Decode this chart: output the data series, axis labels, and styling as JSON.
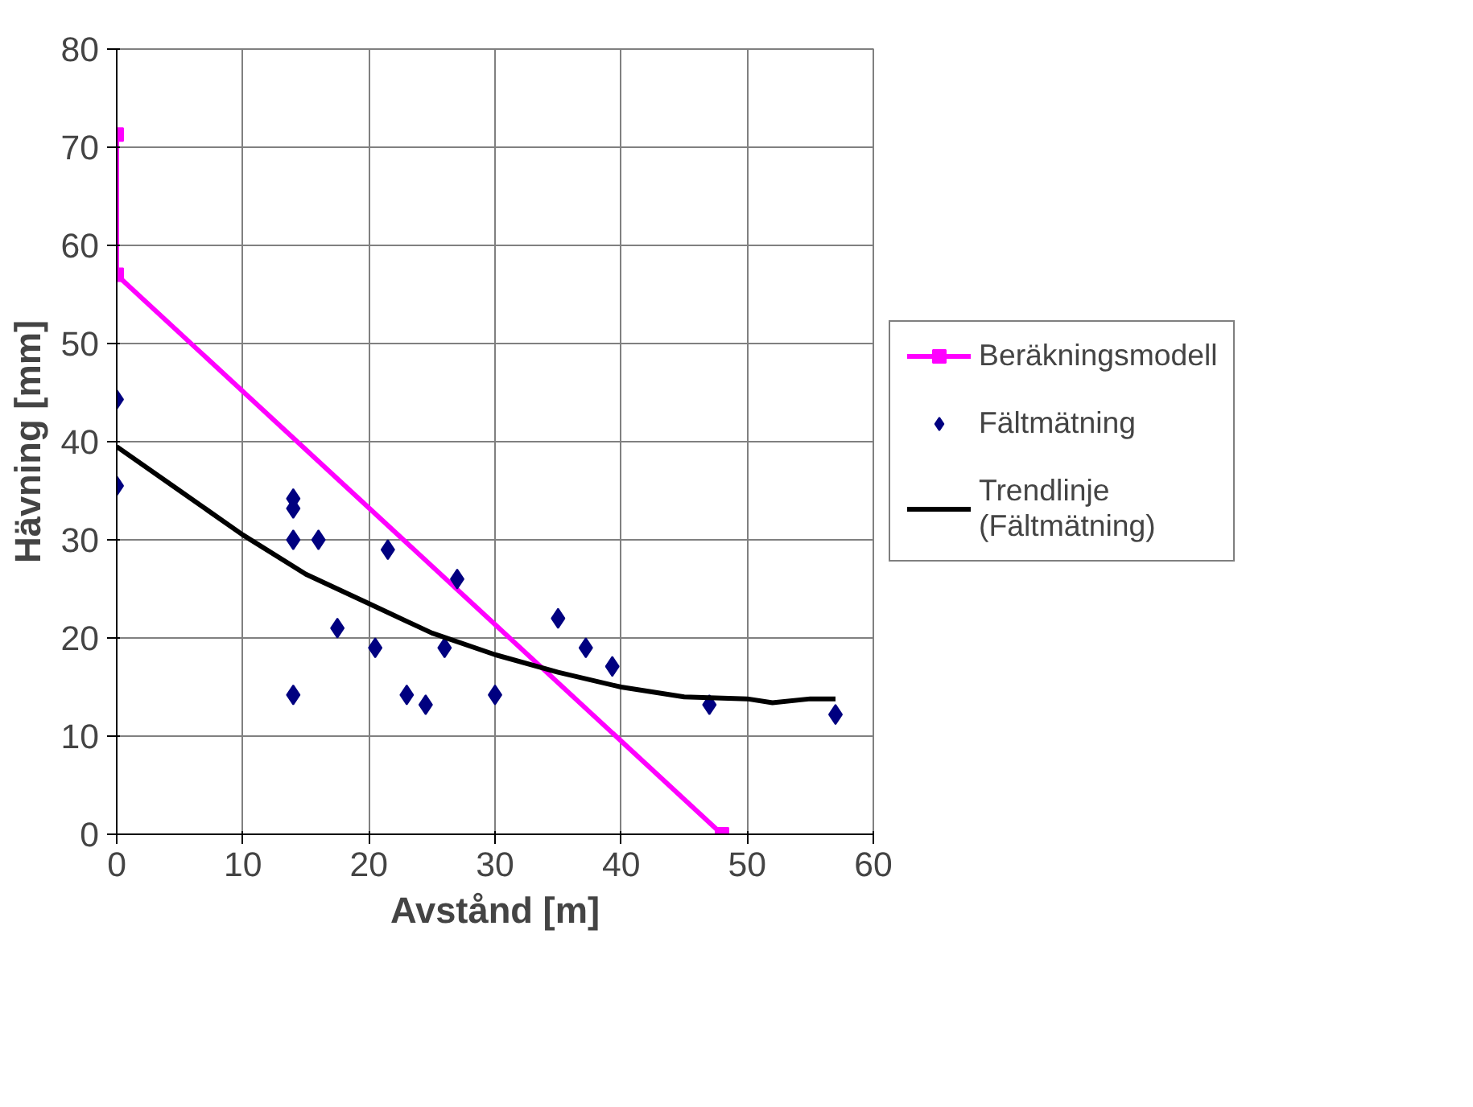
{
  "chart_data": {
    "type": "scatter",
    "xlabel": "Avstånd [m]",
    "ylabel": "Hävning [mm]",
    "xlim": [
      0,
      60
    ],
    "ylim": [
      0,
      80
    ],
    "xticks": [
      0,
      10,
      20,
      30,
      40,
      50,
      60
    ],
    "yticks": [
      0,
      10,
      20,
      30,
      40,
      50,
      60,
      70,
      80
    ],
    "grid": true,
    "legend": "right",
    "series": [
      {
        "name": "Beräkningsmodell",
        "type": "line",
        "color": "#ff00ff",
        "marker": "square",
        "x": [
          0,
          0,
          48
        ],
        "values": [
          71.3,
          57,
          0
        ]
      },
      {
        "name": "Fältmätning",
        "color": "#000080",
        "marker": "diamond",
        "x": [
          0,
          0,
          14,
          14,
          14,
          14,
          16,
          17.5,
          20.5,
          21.5,
          23,
          24.5,
          26,
          27,
          30,
          35,
          37.2,
          39.3,
          47,
          57
        ],
        "values": [
          44.3,
          35.5,
          34.2,
          33.2,
          30,
          14.2,
          30,
          21,
          19,
          29,
          14.2,
          13.2,
          19,
          26,
          14.2,
          22,
          19,
          17.1,
          13.2,
          12.2
        ]
      },
      {
        "name": "Trendlinje\n(Fältmätning)",
        "type": "line",
        "color": "#000000",
        "marker": "none",
        "x": [
          0,
          5,
          10,
          15,
          20,
          25,
          30,
          35,
          40,
          45,
          50,
          52,
          55,
          57
        ],
        "values": [
          39.5,
          35,
          30.5,
          26.5,
          23.5,
          20.5,
          18.3,
          16.5,
          15,
          14,
          13.8,
          13.4,
          13.8,
          13.8
        ]
      }
    ]
  }
}
